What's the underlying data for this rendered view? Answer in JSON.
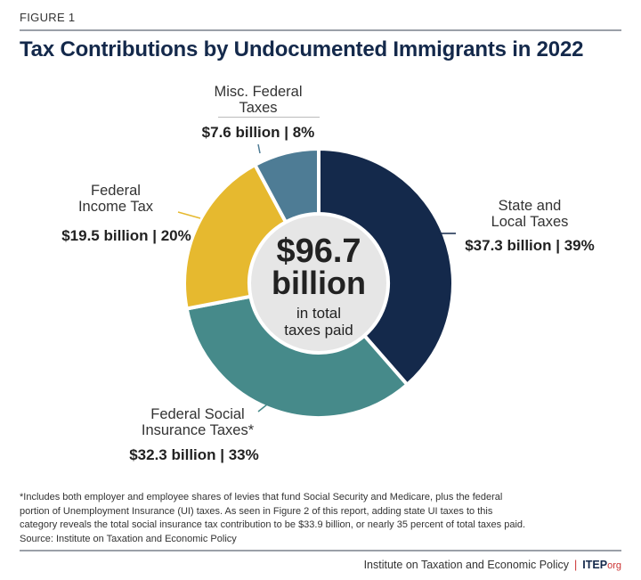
{
  "figure_label": "FIGURE 1",
  "chart_data": {
    "type": "pie",
    "variant": "donut",
    "title": "Tax Contributions by Undocumented Immigrants in 2022",
    "units": "billion USD",
    "center_label": {
      "value": "$96.7",
      "unit": "billion",
      "caption_1": "in total",
      "caption_2": "taxes paid"
    },
    "slices": [
      {
        "label_1": "State and",
        "label_2": "Local Taxes",
        "value": 37.3,
        "percent": 39,
        "value_text": "$37.3 billion | 39%",
        "color": "#14294b"
      },
      {
        "label_1": "Federal Social",
        "label_2": "Insurance Taxes*",
        "value": 32.3,
        "percent": 33,
        "value_text": "$32.3 billion | 33%",
        "color": "#468a8a"
      },
      {
        "label_1": "Federal",
        "label_2": "Income Tax",
        "value": 19.5,
        "percent": 20,
        "value_text": "$19.5 billion | 20%",
        "color": "#e6b92f"
      },
      {
        "label_1": "Misc. Federal",
        "label_2": "Taxes",
        "value": 7.6,
        "percent": 8,
        "value_text": "$7.6 billion | 8%",
        "color": "#4e7c95"
      }
    ],
    "center_fill": "#e6e6e6"
  },
  "footnote": {
    "line1": "*Includes both employer and employee shares of levies that fund Social Security and Medicare, plus the federal",
    "line2": "portion of Unemployment Insurance (UI) taxes. As seen in Figure 2 of this report, adding state UI taxes to this",
    "line3": "category reveals the total social insurance tax contribution to be $33.9 billion, or nearly 35 percent of total taxes paid.",
    "source": "Source: Institute on Taxation and Economic Policy"
  },
  "footer": {
    "org_name": "Institute on Taxation and Economic Policy",
    "separator": "|",
    "logo_main": "ITEP",
    "logo_suffix": "org"
  }
}
